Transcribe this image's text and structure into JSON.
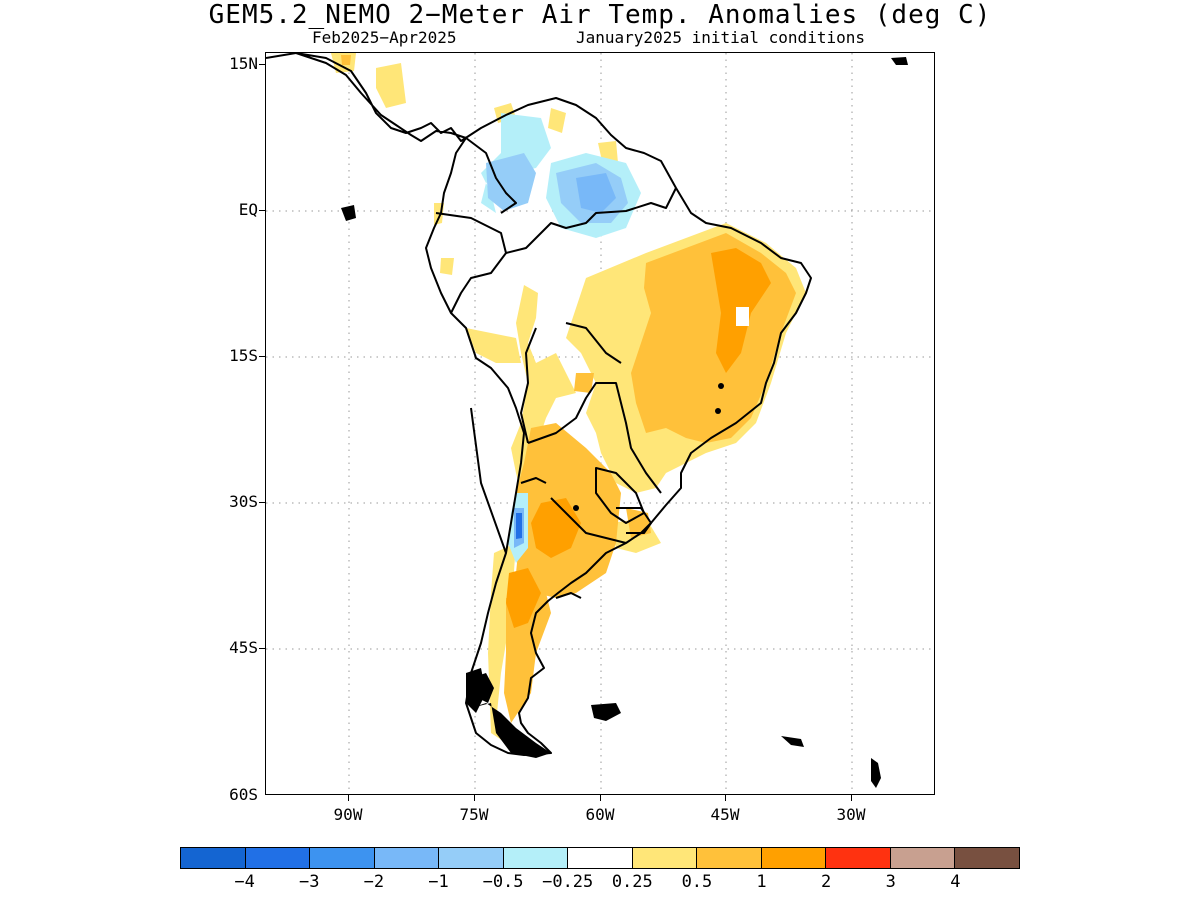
{
  "title": "GEM5.2_NEMO 2−Meter Air Temp. Anomalies (deg C)",
  "subtitle_left": "Feb2025−Apr2025",
  "subtitle_right": "January2025 initial conditions",
  "lat_labels": [
    "15N",
    "EQ",
    "15S",
    "30S",
    "45S",
    "60S"
  ],
  "lon_labels": [
    "90W",
    "75W",
    "60W",
    "45W",
    "30W"
  ],
  "colorbar": {
    "colors": [
      "#1465d2",
      "#2170e6",
      "#3d93f0",
      "#78b8f8",
      "#95cdf8",
      "#b4eff9",
      "#ffffff",
      "#ffe678",
      "#ffc13a",
      "#ffa000",
      "#ff3210",
      "#c8a090",
      "#785040"
    ],
    "labels": [
      "−4",
      "−3",
      "−2",
      "−1",
      "−0.5",
      "−0.25",
      "0.25",
      "0.5",
      "1",
      "2",
      "3",
      "4"
    ]
  }
}
